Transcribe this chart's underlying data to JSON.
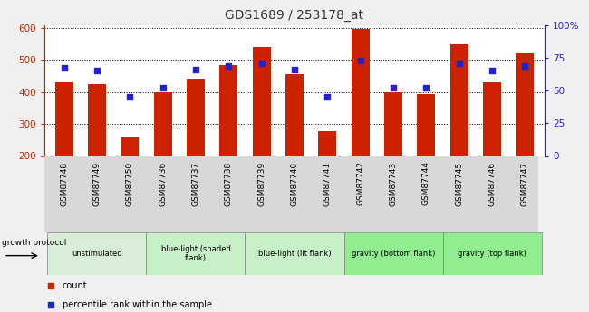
{
  "title": "GDS1689 / 253178_at",
  "samples": [
    "GSM87748",
    "GSM87749",
    "GSM87750",
    "GSM87736",
    "GSM87737",
    "GSM87738",
    "GSM87739",
    "GSM87740",
    "GSM87741",
    "GSM87742",
    "GSM87743",
    "GSM87744",
    "GSM87745",
    "GSM87746",
    "GSM87747"
  ],
  "counts": [
    430,
    425,
    258,
    400,
    443,
    485,
    540,
    457,
    278,
    598,
    400,
    393,
    550,
    432,
    520
  ],
  "percentiles": [
    67,
    65,
    45,
    52,
    66,
    69,
    71,
    66,
    45,
    73,
    52,
    52,
    71,
    65,
    69
  ],
  "ylim_left": [
    200,
    610
  ],
  "ylim_right": [
    0,
    100
  ],
  "yticks_left": [
    200,
    300,
    400,
    500,
    600
  ],
  "yticks_right": [
    0,
    25,
    50,
    75,
    100
  ],
  "bar_color": "#cc2200",
  "dot_color": "#2222cc",
  "bar_width": 0.55,
  "groups": [
    {
      "label": "unstimulated",
      "indices": [
        0,
        1,
        2
      ],
      "color": "#d8eed8"
    },
    {
      "label": "blue-light (shaded\nflank)",
      "indices": [
        3,
        4,
        5
      ],
      "color": "#c8f0c8"
    },
    {
      "label": "blue-light (lit flank)",
      "indices": [
        6,
        7,
        8
      ],
      "color": "#c8f0c8"
    },
    {
      "label": "gravity (bottom flank)",
      "indices": [
        9,
        10,
        11
      ],
      "color": "#90ee90"
    },
    {
      "label": "gravity (top flank)",
      "indices": [
        12,
        13,
        14
      ],
      "color": "#90ee90"
    }
  ],
  "sample_band_color": "#d8d8d8",
  "growth_protocol_label": "growth protocol",
  "legend_count_label": "count",
  "legend_pct_label": "percentile rank within the sample",
  "background_color": "#f0f0f0",
  "plot_bg_color": "#ffffff",
  "title_color": "#333333",
  "left_axis_color": "#cc2200",
  "right_axis_color": "#2222cc"
}
